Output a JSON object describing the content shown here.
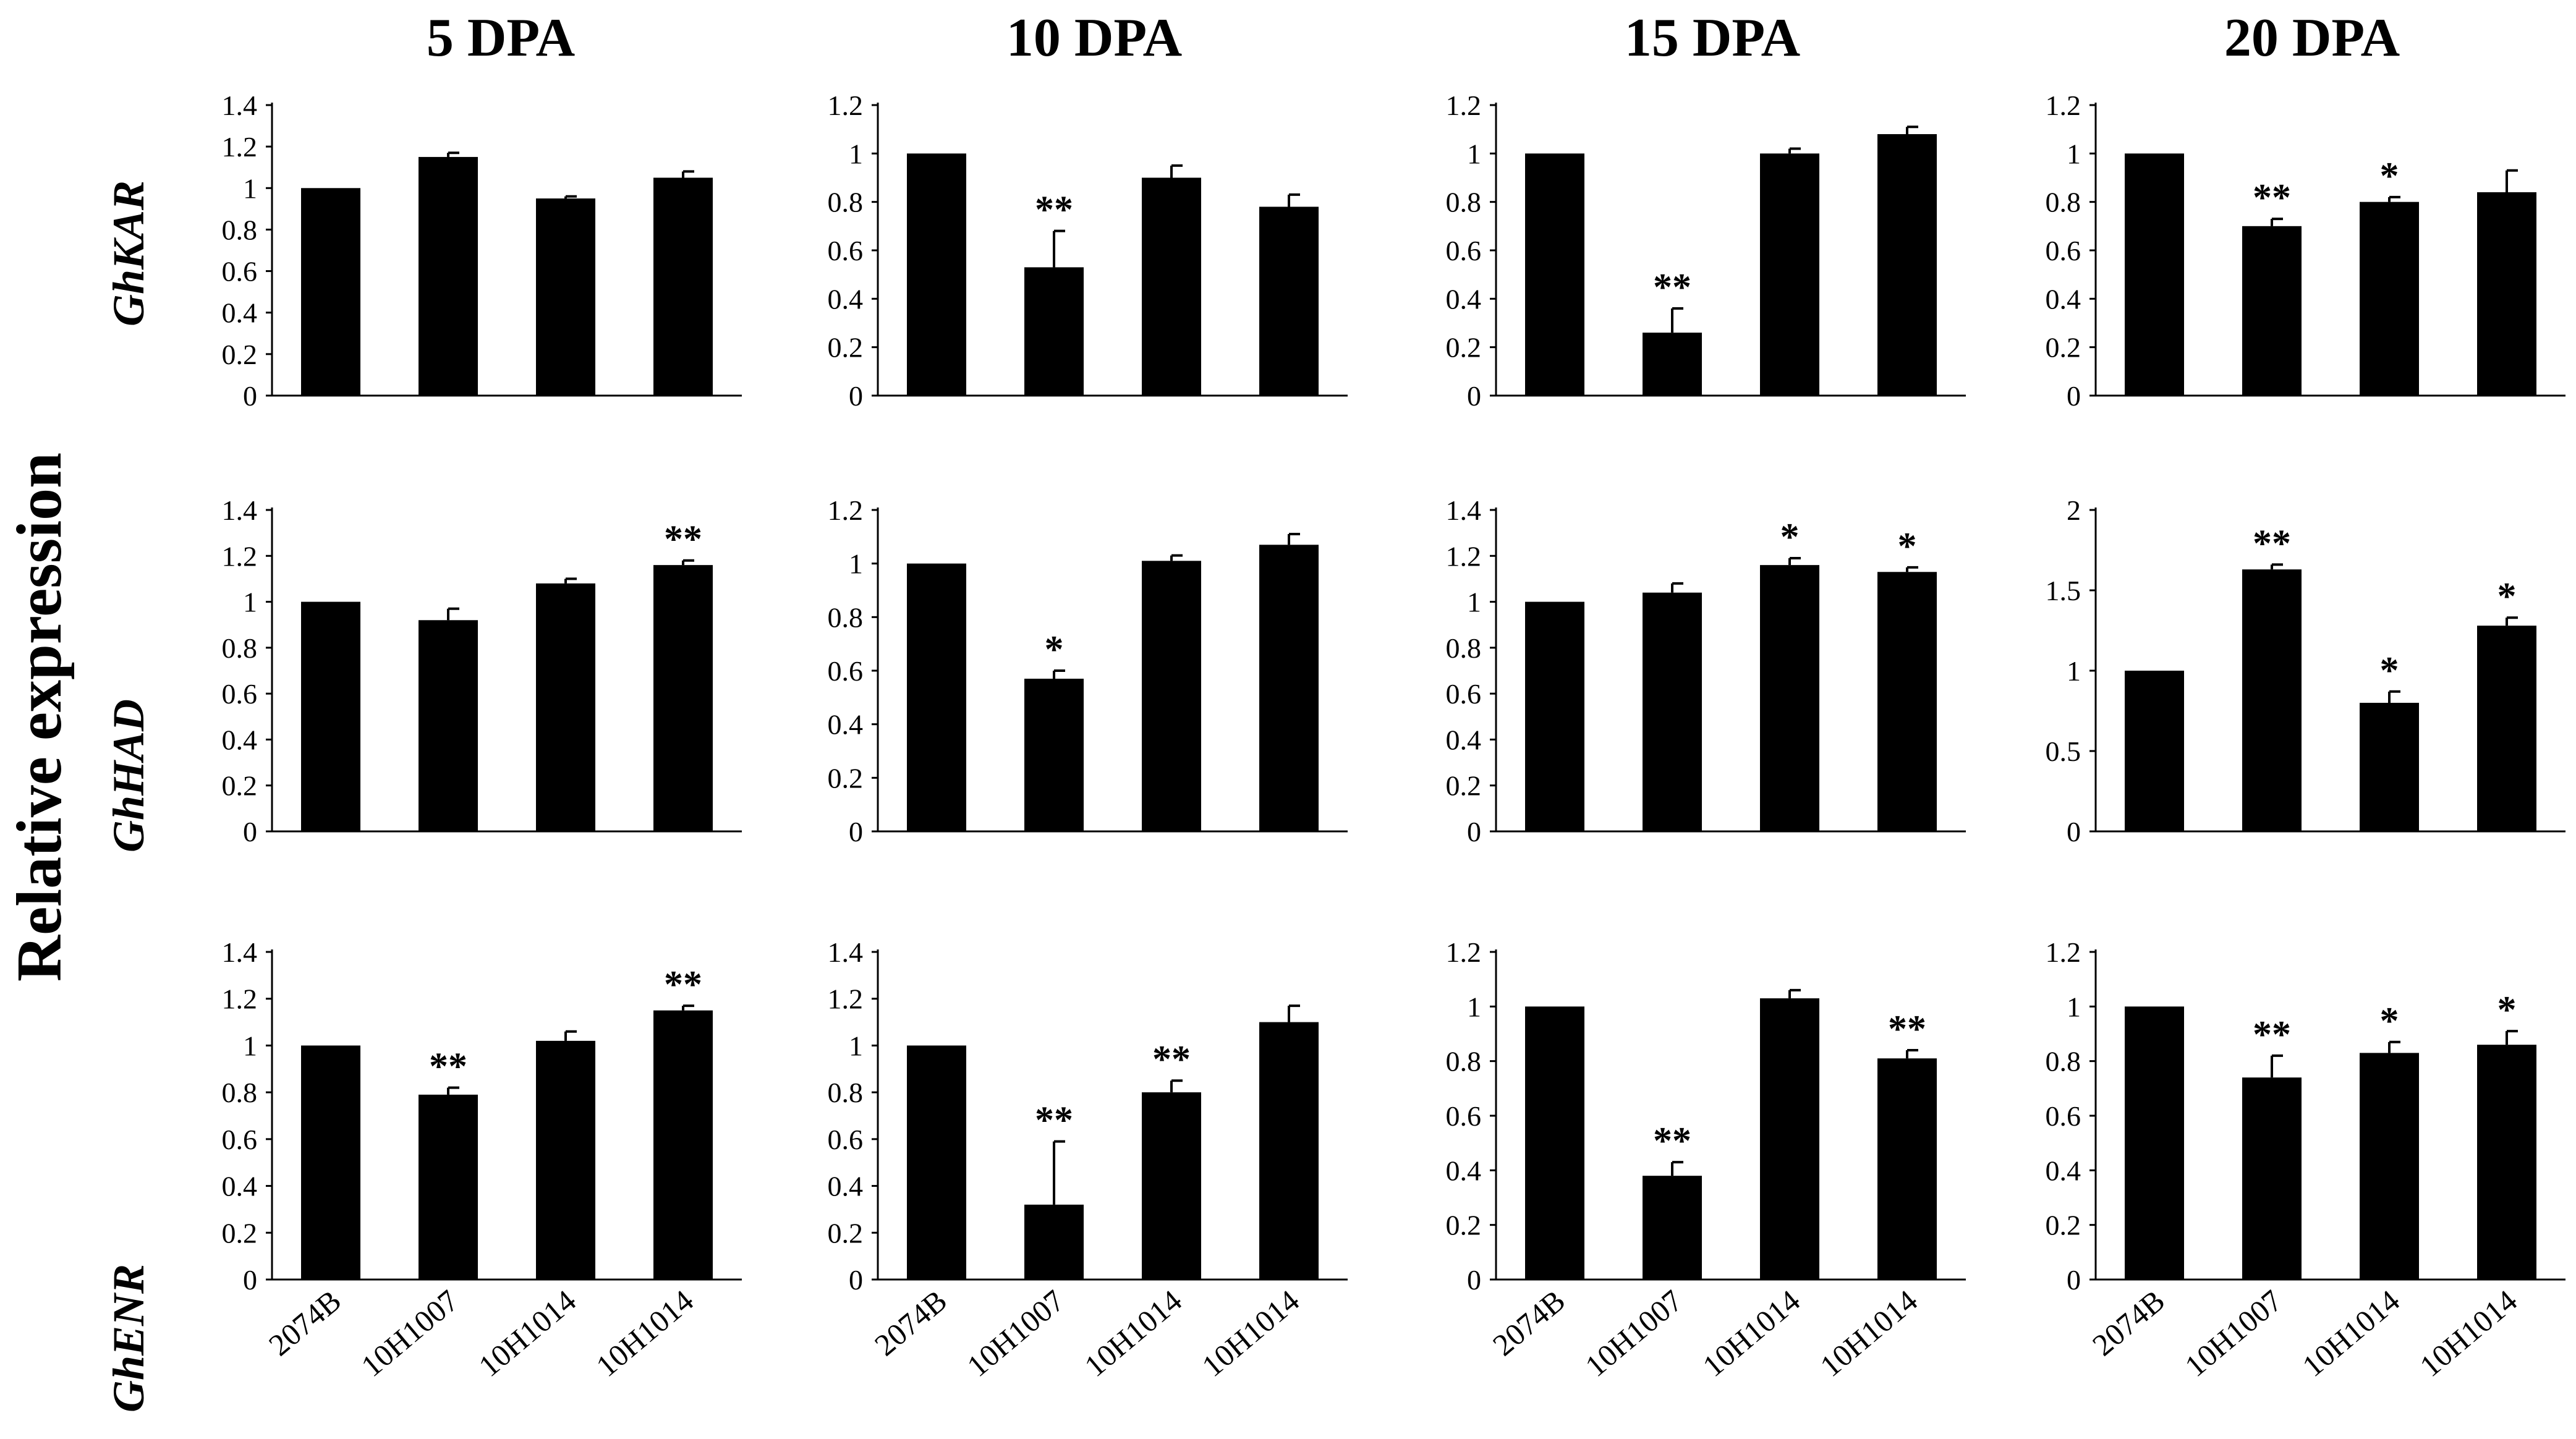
{
  "figure": {
    "y_axis_title": "Relative expression",
    "columns": [
      "5 DPA",
      "10 DPA",
      "15 DPA",
      "20 DPA"
    ],
    "genes": [
      "GhKAR",
      "GhHAD",
      "GhENR"
    ],
    "categories": [
      "2074B",
      "10H1007",
      "10H1014",
      "10H1014"
    ]
  },
  "chart_data": [
    {
      "type": "bar",
      "gene": "GhKAR",
      "stage": "5 DPA",
      "categories": [
        "2074B",
        "10H1007",
        "10H1014",
        "10H1014"
      ],
      "values": [
        1.0,
        1.15,
        0.95,
        1.05
      ],
      "errors": [
        0,
        0.02,
        0.01,
        0.03
      ],
      "significance": [
        "",
        "",
        "",
        ""
      ],
      "ylim": [
        0,
        1.4
      ],
      "yticks": [
        "0",
        "0.2",
        "0.4",
        "0.6",
        "0.8",
        "1",
        "1.2",
        "1.4"
      ]
    },
    {
      "type": "bar",
      "gene": "GhKAR",
      "stage": "10 DPA",
      "categories": [
        "2074B",
        "10H1007",
        "10H1014",
        "10H1014"
      ],
      "values": [
        1.0,
        0.53,
        0.9,
        0.78
      ],
      "errors": [
        0,
        0.15,
        0.05,
        0.05
      ],
      "significance": [
        "",
        "**",
        "",
        ""
      ],
      "ylim": [
        0,
        1.2
      ],
      "yticks": [
        "0",
        "0.2",
        "0.4",
        "0.6",
        "0.8",
        "1",
        "1.2"
      ]
    },
    {
      "type": "bar",
      "gene": "GhKAR",
      "stage": "15 DPA",
      "categories": [
        "2074B",
        "10H1007",
        "10H1014",
        "10H1014"
      ],
      "values": [
        1.0,
        0.26,
        1.0,
        1.08
      ],
      "errors": [
        0,
        0.1,
        0.02,
        0.03
      ],
      "significance": [
        "",
        "**",
        "",
        ""
      ],
      "ylim": [
        0,
        1.2
      ],
      "yticks": [
        "0",
        "0.2",
        "0.4",
        "0.6",
        "0.8",
        "1",
        "1.2"
      ]
    },
    {
      "type": "bar",
      "gene": "GhKAR",
      "stage": "20 DPA",
      "categories": [
        "2074B",
        "10H1007",
        "10H1014",
        "10H1014"
      ],
      "values": [
        1.0,
        0.7,
        0.8,
        0.84
      ],
      "errors": [
        0,
        0.03,
        0.02,
        0.09
      ],
      "significance": [
        "",
        "**",
        "*",
        ""
      ],
      "ylim": [
        0,
        1.2
      ],
      "yticks": [
        "0",
        "0.2",
        "0.4",
        "0.6",
        "0.8",
        "1",
        "1.2"
      ]
    },
    {
      "type": "bar",
      "gene": "GhHAD",
      "stage": "5 DPA",
      "categories": [
        "2074B",
        "10H1007",
        "10H1014",
        "10H1014"
      ],
      "values": [
        1.0,
        0.92,
        1.08,
        1.16
      ],
      "errors": [
        0,
        0.05,
        0.02,
        0.02
      ],
      "significance": [
        "",
        "",
        "",
        "**"
      ],
      "ylim": [
        0,
        1.4
      ],
      "yticks": [
        "0",
        "0.2",
        "0.4",
        "0.6",
        "0.8",
        "1",
        "1.2",
        "1.4"
      ]
    },
    {
      "type": "bar",
      "gene": "GhHAD",
      "stage": "10 DPA",
      "categories": [
        "2074B",
        "10H1007",
        "10H1014",
        "10H1014"
      ],
      "values": [
        1.0,
        0.57,
        1.01,
        1.07
      ],
      "errors": [
        0,
        0.03,
        0.02,
        0.04
      ],
      "significance": [
        "",
        "*",
        "",
        ""
      ],
      "ylim": [
        0,
        1.2
      ],
      "yticks": [
        "0",
        "0.2",
        "0.4",
        "0.6",
        "0.8",
        "1",
        "1.2"
      ]
    },
    {
      "type": "bar",
      "gene": "GhHAD",
      "stage": "15 DPA",
      "categories": [
        "2074B",
        "10H1007",
        "10H1014",
        "10H1014"
      ],
      "values": [
        1.0,
        1.04,
        1.16,
        1.13
      ],
      "errors": [
        0,
        0.04,
        0.03,
        0.02
      ],
      "significance": [
        "",
        "",
        "*",
        "*"
      ],
      "ylim": [
        0,
        1.4
      ],
      "yticks": [
        "0",
        "0.2",
        "0.4",
        "0.6",
        "0.8",
        "1",
        "1.2",
        "1.4"
      ]
    },
    {
      "type": "bar",
      "gene": "GhHAD",
      "stage": "20 DPA",
      "categories": [
        "2074B",
        "10H1007",
        "10H1014",
        "10H1014"
      ],
      "values": [
        1.0,
        1.63,
        0.8,
        1.28
      ],
      "errors": [
        0,
        0.03,
        0.07,
        0.05
      ],
      "significance": [
        "",
        "**",
        "*",
        "*"
      ],
      "ylim": [
        0,
        2
      ],
      "yticks": [
        "0",
        "0.5",
        "1",
        "1.5",
        "2"
      ]
    },
    {
      "type": "bar",
      "gene": "GhENR",
      "stage": "5 DPA",
      "categories": [
        "2074B",
        "10H1007",
        "10H1014",
        "10H1014"
      ],
      "values": [
        1.0,
        0.79,
        1.02,
        1.15
      ],
      "errors": [
        0,
        0.03,
        0.04,
        0.02
      ],
      "significance": [
        "",
        "**",
        "",
        "**"
      ],
      "ylim": [
        0,
        1.4
      ],
      "yticks": [
        "0",
        "0.2",
        "0.4",
        "0.6",
        "0.8",
        "1",
        "1.2",
        "1.4"
      ]
    },
    {
      "type": "bar",
      "gene": "GhENR",
      "stage": "10 DPA",
      "categories": [
        "2074B",
        "10H1007",
        "10H1014",
        "10H1014"
      ],
      "values": [
        1.0,
        0.32,
        0.8,
        1.1
      ],
      "errors": [
        0,
        0.27,
        0.05,
        0.07
      ],
      "significance": [
        "",
        "**",
        "**",
        ""
      ],
      "ylim": [
        0,
        1.4
      ],
      "yticks": [
        "0",
        "0.2",
        "0.4",
        "0.6",
        "0.8",
        "1",
        "1.2",
        "1.4"
      ]
    },
    {
      "type": "bar",
      "gene": "GhENR",
      "stage": "15 DPA",
      "categories": [
        "2074B",
        "10H1007",
        "10H1014",
        "10H1014"
      ],
      "values": [
        1.0,
        0.38,
        1.03,
        0.81
      ],
      "errors": [
        0,
        0.05,
        0.03,
        0.03
      ],
      "significance": [
        "",
        "**",
        "",
        "**"
      ],
      "ylim": [
        0,
        1.2
      ],
      "yticks": [
        "0",
        "0.2",
        "0.4",
        "0.6",
        "0.8",
        "1",
        "1.2"
      ]
    },
    {
      "type": "bar",
      "gene": "GhENR",
      "stage": "20 DPA",
      "categories": [
        "2074B",
        "10H1007",
        "10H1014",
        "10H1014"
      ],
      "values": [
        1.0,
        0.74,
        0.83,
        0.86
      ],
      "errors": [
        0,
        0.08,
        0.04,
        0.05
      ],
      "significance": [
        "",
        "**",
        "*",
        "*"
      ],
      "ylim": [
        0,
        1.2
      ],
      "yticks": [
        "0",
        "0.2",
        "0.4",
        "0.6",
        "0.8",
        "1",
        "1.2"
      ]
    }
  ]
}
